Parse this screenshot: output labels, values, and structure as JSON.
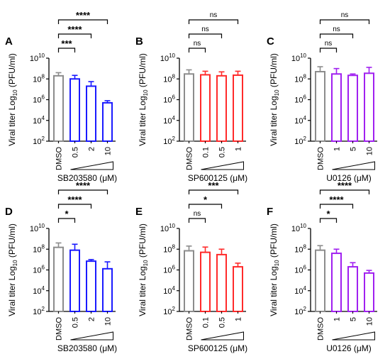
{
  "chart_data": [
    {
      "type": "bar",
      "panel_label": "A",
      "ylabel": "Viral titer Log10 (PFU/ml)",
      "ylabel_main": "Viral titer Log",
      "ylabel_sub": "10",
      "ylabel_unit": " (PFU/ml)",
      "yscale": "log",
      "ylim": [
        100,
        10000000000
      ],
      "ytick_values": [
        100,
        10000,
        1000000,
        100000000,
        10000000000
      ],
      "ytick_labels": [
        {
          "base": "10",
          "exp": "2"
        },
        {
          "base": "10",
          "exp": "4"
        },
        {
          "base": "10",
          "exp": "6"
        },
        {
          "base": "10",
          "exp": "8"
        },
        {
          "base": "10",
          "exp": "10"
        }
      ],
      "categories": [
        "DMSO",
        "0.5",
        "2",
        "10"
      ],
      "values": [
        200000000,
        100000000,
        20000000,
        500000
      ],
      "errors_upper": [
        400000000,
        220000000,
        55000000,
        800000
      ],
      "colors": [
        "#8c8c8c",
        "#1a1aff",
        "#1a1aff",
        "#1a1aff"
      ],
      "xlabel": "SB203580 (μM)",
      "significance": [
        {
          "from": 0,
          "to": 1,
          "label": "***"
        },
        {
          "from": 0,
          "to": 2,
          "label": "****"
        },
        {
          "from": 0,
          "to": 3,
          "label": "****"
        }
      ]
    },
    {
      "type": "bar",
      "panel_label": "B",
      "ylabel": "Viral titer Log10 (PFU/ml)",
      "ylabel_main": "Viral titer Log",
      "ylabel_sub": "10",
      "ylabel_unit": " (PFU/ml)",
      "yscale": "log",
      "ylim": [
        100,
        10000000000
      ],
      "ytick_values": [
        100,
        10000,
        1000000,
        100000000,
        10000000000
      ],
      "ytick_labels": [
        {
          "base": "10",
          "exp": "2"
        },
        {
          "base": "10",
          "exp": "4"
        },
        {
          "base": "10",
          "exp": "6"
        },
        {
          "base": "10",
          "exp": "8"
        },
        {
          "base": "10",
          "exp": "10"
        }
      ],
      "categories": [
        "DMSO",
        "0.1",
        "0.5",
        "1"
      ],
      "values": [
        300000000,
        250000000,
        200000000,
        230000000
      ],
      "errors_upper": [
        750000000,
        550000000,
        480000000,
        550000000
      ],
      "colors": [
        "#8c8c8c",
        "#ff2a2a",
        "#ff2a2a",
        "#ff2a2a"
      ],
      "xlabel": "SP600125 (μM)",
      "significance": [
        {
          "from": 0,
          "to": 1,
          "label": "ns"
        },
        {
          "from": 0,
          "to": 2,
          "label": "ns"
        },
        {
          "from": 0,
          "to": 3,
          "label": "ns"
        }
      ]
    },
    {
      "type": "bar",
      "panel_label": "C",
      "ylabel": "Viral titer Log10 (PFU/ml)",
      "ylabel_main": "Viral titer Log",
      "ylabel_sub": "10",
      "ylabel_unit": " (PFU/ml)",
      "yscale": "log",
      "ylim": [
        100,
        10000000000
      ],
      "ytick_values": [
        100,
        10000,
        1000000,
        100000000,
        10000000000
      ],
      "ytick_labels": [
        {
          "base": "10",
          "exp": "2"
        },
        {
          "base": "10",
          "exp": "4"
        },
        {
          "base": "10",
          "exp": "6"
        },
        {
          "base": "10",
          "exp": "8"
        },
        {
          "base": "10",
          "exp": "10"
        }
      ],
      "categories": [
        "DMSO",
        "1",
        "5",
        "10"
      ],
      "values": [
        500000000,
        300000000,
        220000000,
        350000000
      ],
      "errors_upper": [
        1500000000,
        1000000000,
        300000000,
        1300000000
      ],
      "colors": [
        "#8c8c8c",
        "#a020f0",
        "#a020f0",
        "#a020f0"
      ],
      "xlabel": "U0126 (μM)",
      "significance": [
        {
          "from": 0,
          "to": 1,
          "label": "ns"
        },
        {
          "from": 0,
          "to": 2,
          "label": "ns"
        },
        {
          "from": 0,
          "to": 3,
          "label": "ns"
        }
      ]
    },
    {
      "type": "bar",
      "panel_label": "D",
      "ylabel": "Viral titer Log10 (PFU/ml)",
      "ylabel_main": "Viral titer Log",
      "ylabel_sub": "10",
      "ylabel_unit": " (PFU/ml)",
      "yscale": "log",
      "ylim": [
        100,
        10000000000
      ],
      "ytick_values": [
        100,
        10000,
        1000000,
        100000000,
        10000000000
      ],
      "ytick_labels": [
        {
          "base": "10",
          "exp": "2"
        },
        {
          "base": "10",
          "exp": "4"
        },
        {
          "base": "10",
          "exp": "6"
        },
        {
          "base": "10",
          "exp": "8"
        },
        {
          "base": "10",
          "exp": "10"
        }
      ],
      "categories": [
        "DMSO",
        "0.5",
        "2",
        "10"
      ],
      "values": [
        150000000,
        80000000,
        7000000,
        1300000
      ],
      "errors_upper": [
        400000000,
        300000000,
        10000000,
        6000000
      ],
      "colors": [
        "#8c8c8c",
        "#1a1aff",
        "#1a1aff",
        "#1a1aff"
      ],
      "xlabel": "SB203580 (μM)",
      "significance": [
        {
          "from": 0,
          "to": 1,
          "label": "*"
        },
        {
          "from": 0,
          "to": 2,
          "label": "****"
        },
        {
          "from": 0,
          "to": 3,
          "label": "****"
        }
      ]
    },
    {
      "type": "bar",
      "panel_label": "E",
      "ylabel": "Viral titer Log10 (PFU/ml)",
      "ylabel_main": "Viral titer Log",
      "ylabel_sub": "10",
      "ylabel_unit": " (PFU/ml)",
      "yscale": "log",
      "ylim": [
        100,
        10000000000
      ],
      "ytick_values": [
        100,
        10000,
        1000000,
        100000000,
        10000000000
      ],
      "ytick_labels": [
        {
          "base": "10",
          "exp": "2"
        },
        {
          "base": "10",
          "exp": "4"
        },
        {
          "base": "10",
          "exp": "6"
        },
        {
          "base": "10",
          "exp": "8"
        },
        {
          "base": "10",
          "exp": "10"
        }
      ],
      "categories": [
        "DMSO",
        "0.1",
        "0.5",
        "1"
      ],
      "values": [
        70000000,
        50000000,
        30000000,
        2000000
      ],
      "errors_upper": [
        200000000,
        160000000,
        100000000,
        4500000
      ],
      "colors": [
        "#8c8c8c",
        "#ff2a2a",
        "#ff2a2a",
        "#ff2a2a"
      ],
      "xlabel": "SP600125 (μM)",
      "significance": [
        {
          "from": 0,
          "to": 1,
          "label": "ns"
        },
        {
          "from": 0,
          "to": 2,
          "label": "*"
        },
        {
          "from": 0,
          "to": 3,
          "label": "***"
        }
      ]
    },
    {
      "type": "bar",
      "panel_label": "F",
      "ylabel": "Viral titer Log10 (PFU/ml)",
      "ylabel_main": "Viral titer Log",
      "ylabel_sub": "10",
      "ylabel_unit": " (PFU/ml)",
      "yscale": "log",
      "ylim": [
        100,
        10000000000
      ],
      "ytick_values": [
        100,
        10000,
        1000000,
        100000000,
        10000000000
      ],
      "ytick_labels": [
        {
          "base": "10",
          "exp": "2"
        },
        {
          "base": "10",
          "exp": "4"
        },
        {
          "base": "10",
          "exp": "6"
        },
        {
          "base": "10",
          "exp": "8"
        },
        {
          "base": "10",
          "exp": "10"
        }
      ],
      "categories": [
        "DMSO",
        "1",
        "5",
        "10"
      ],
      "values": [
        80000000,
        40000000,
        2000000,
        500000
      ],
      "errors_upper": [
        220000000,
        100000000,
        5000000,
        900000
      ],
      "colors": [
        "#8c8c8c",
        "#a020f0",
        "#a020f0",
        "#a020f0"
      ],
      "xlabel": "U0126 (μM)",
      "significance": [
        {
          "from": 0,
          "to": 1,
          "label": "*"
        },
        {
          "from": 0,
          "to": 2,
          "label": "****"
        },
        {
          "from": 0,
          "to": 3,
          "label": "****"
        }
      ]
    }
  ]
}
